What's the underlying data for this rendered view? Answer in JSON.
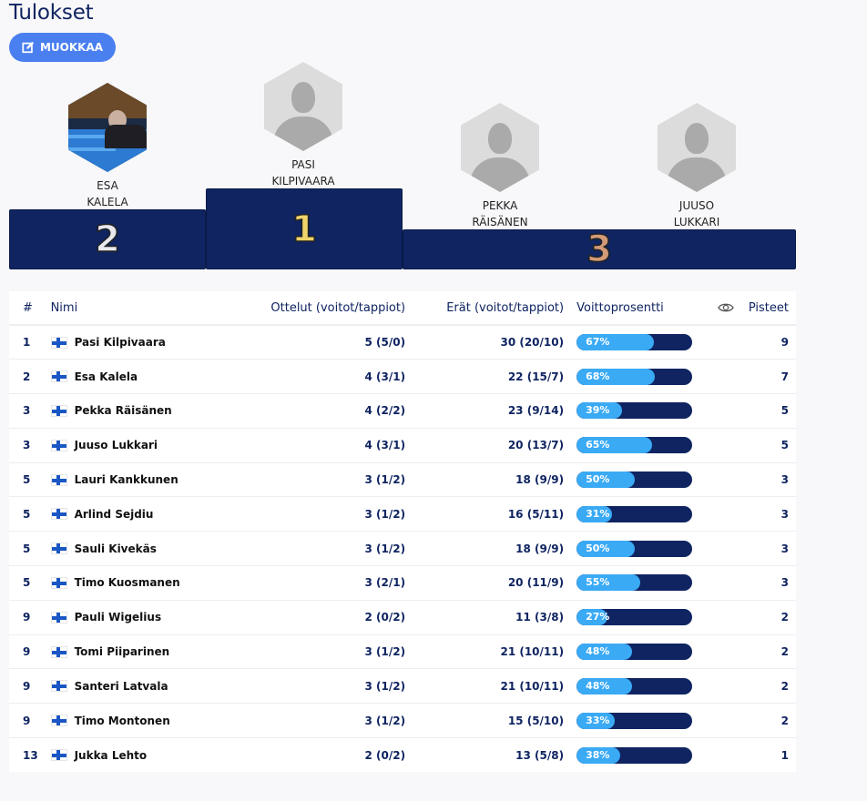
{
  "page": {
    "title": "Tulokset"
  },
  "toolbar": {
    "edit_label": "MUOKKAA",
    "edit_icon": "edit-icon"
  },
  "colors": {
    "navy": "#0f2461",
    "accent": "#4a7ff0",
    "bar_fill": "#3aaaf5"
  },
  "podium": {
    "first": {
      "place": "1",
      "first_name": "PASI",
      "last_name": "KILPIVAARA",
      "avatar": "placeholder"
    },
    "second": {
      "place": "2",
      "first_name": "ESA",
      "last_name": "KALELA",
      "avatar": "photo"
    },
    "third_a": {
      "place": "3",
      "first_name": "PEKKA",
      "last_name": "RÄISÄNEN",
      "avatar": "placeholder"
    },
    "third_b": {
      "first_name": "JUUSO",
      "last_name": "LUKKARI",
      "avatar": "placeholder"
    }
  },
  "table": {
    "headers": {
      "rank": "#",
      "name": "Nimi",
      "matches": "Ottelut (voitot/tappiot)",
      "sets": "Erät (voitot/tappiot)",
      "win_pct": "Voittoprosentti",
      "eye_icon": "eye-icon",
      "points": "Pisteet"
    },
    "rows": [
      {
        "rank": "1",
        "name": "Pasi Kilpivaara",
        "country": "Finland",
        "matches": "5 (5/0)",
        "sets": "30 (20/10)",
        "pct_label": "67%",
        "pct": 67,
        "points": "9"
      },
      {
        "rank": "2",
        "name": "Esa Kalela",
        "country": "Finland",
        "matches": "4 (3/1)",
        "sets": "22 (15/7)",
        "pct_label": "68%",
        "pct": 68,
        "points": "7"
      },
      {
        "rank": "3",
        "name": "Pekka Räisänen",
        "country": "Finland",
        "matches": "4 (2/2)",
        "sets": "23 (9/14)",
        "pct_label": "39%",
        "pct": 39,
        "points": "5"
      },
      {
        "rank": "3",
        "name": "Juuso Lukkari",
        "country": "Finland",
        "matches": "4 (3/1)",
        "sets": "20 (13/7)",
        "pct_label": "65%",
        "pct": 65,
        "points": "5"
      },
      {
        "rank": "5",
        "name": "Lauri Kankkunen",
        "country": "Finland",
        "matches": "3 (1/2)",
        "sets": "18 (9/9)",
        "pct_label": "50%",
        "pct": 50,
        "points": "3"
      },
      {
        "rank": "5",
        "name": "Arlind Sejdiu",
        "country": "Finland",
        "matches": "3 (1/2)",
        "sets": "16 (5/11)",
        "pct_label": "31%",
        "pct": 31,
        "points": "3"
      },
      {
        "rank": "5",
        "name": "Sauli Kivekäs",
        "country": "Finland",
        "matches": "3 (1/2)",
        "sets": "18 (9/9)",
        "pct_label": "50%",
        "pct": 50,
        "points": "3"
      },
      {
        "rank": "5",
        "name": "Timo Kuosmanen",
        "country": "Finland",
        "matches": "3 (2/1)",
        "sets": "20 (11/9)",
        "pct_label": "55%",
        "pct": 55,
        "points": "3"
      },
      {
        "rank": "9",
        "name": "Pauli Wigelius",
        "country": "Finland",
        "matches": "2 (0/2)",
        "sets": "11 (3/8)",
        "pct_label": "27%",
        "pct": 27,
        "points": "2"
      },
      {
        "rank": "9",
        "name": "Tomi Piiparinen",
        "country": "Finland",
        "matches": "3 (1/2)",
        "sets": "21 (10/11)",
        "pct_label": "48%",
        "pct": 48,
        "points": "2"
      },
      {
        "rank": "9",
        "name": "Santeri Latvala",
        "country": "Finland",
        "matches": "3 (1/2)",
        "sets": "21 (10/11)",
        "pct_label": "48%",
        "pct": 48,
        "points": "2"
      },
      {
        "rank": "9",
        "name": "Timo Montonen",
        "country": "Finland",
        "matches": "3 (1/2)",
        "sets": "15 (5/10)",
        "pct_label": "33%",
        "pct": 33,
        "points": "2"
      },
      {
        "rank": "13",
        "name": "Jukka Lehto",
        "country": "Finland",
        "matches": "2 (0/2)",
        "sets": "13 (5/8)",
        "pct_label": "38%",
        "pct": 38,
        "points": "1"
      }
    ]
  }
}
